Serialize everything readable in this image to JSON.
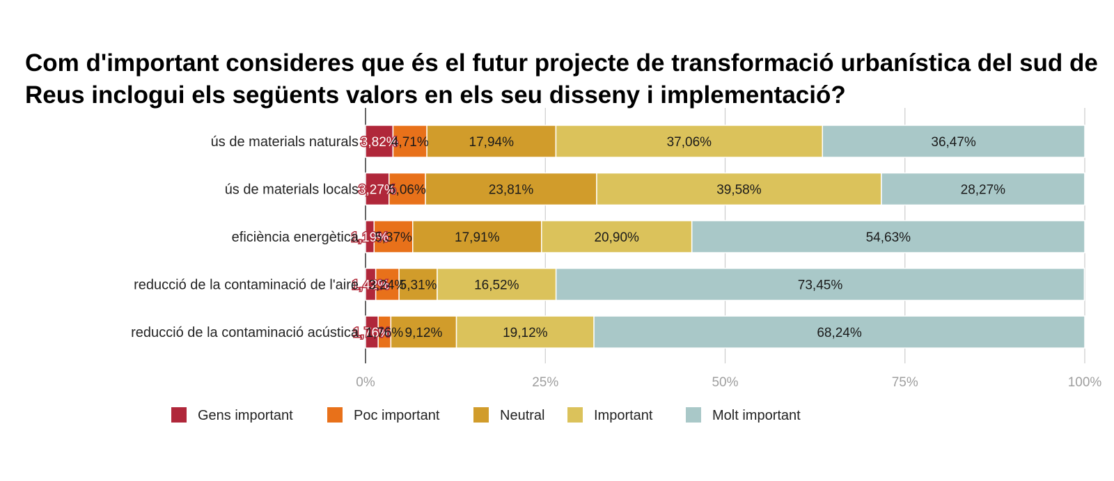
{
  "chart_data": {
    "type": "bar",
    "orientation": "horizontal",
    "stacked": "percent",
    "title": "Com d'important consideres que és el futur projecte de transformació urbanística del sud de Reus inclogui els següents valors en els seu disseny i implementació?",
    "categories": [
      "ús de materials naturals",
      "ús de materials locals",
      "eficiència energètica",
      "reducció de la contaminació de l'aire",
      "reducció de la contaminació acústica"
    ],
    "series": [
      {
        "name": "Gens important",
        "color": "#b0273a",
        "values": [
          3.82,
          3.27,
          1.19,
          1.42,
          1.76
        ],
        "labels": [
          "3,82%",
          "3,27%",
          "1,19%",
          "1,42%",
          "1,76%"
        ]
      },
      {
        "name": "Poc important",
        "color": "#e8711a",
        "values": [
          4.71,
          5.06,
          5.37,
          3.24,
          1.76
        ],
        "labels": [
          "4,71%",
          "5,06%",
          "5,37%",
          "3,24%",
          "1,76%"
        ]
      },
      {
        "name": "Neutral",
        "color": "#d19c2b",
        "values": [
          17.94,
          23.81,
          17.91,
          5.31,
          9.12
        ],
        "labels": [
          "17,94%",
          "23,81%",
          "17,91%",
          "5,31%",
          "9,12%"
        ]
      },
      {
        "name": "Important",
        "color": "#dbc25b",
        "values": [
          37.06,
          39.58,
          20.9,
          16.52,
          19.12
        ],
        "labels": [
          "37,06%",
          "39,58%",
          "20,90%",
          "16,52%",
          "19,12%"
        ]
      },
      {
        "name": "Molt important",
        "color": "#a9c8c8",
        "values": [
          36.47,
          28.27,
          54.63,
          73.45,
          68.24
        ],
        "labels": [
          "36,47%",
          "28,27%",
          "54,63%",
          "73,45%",
          "68,24%"
        ]
      }
    ],
    "xlim": [
      0,
      100
    ],
    "x_ticks": [
      "0%",
      "25%",
      "50%",
      "75%",
      "100%"
    ],
    "grid": true,
    "legend_position": "bottom"
  }
}
